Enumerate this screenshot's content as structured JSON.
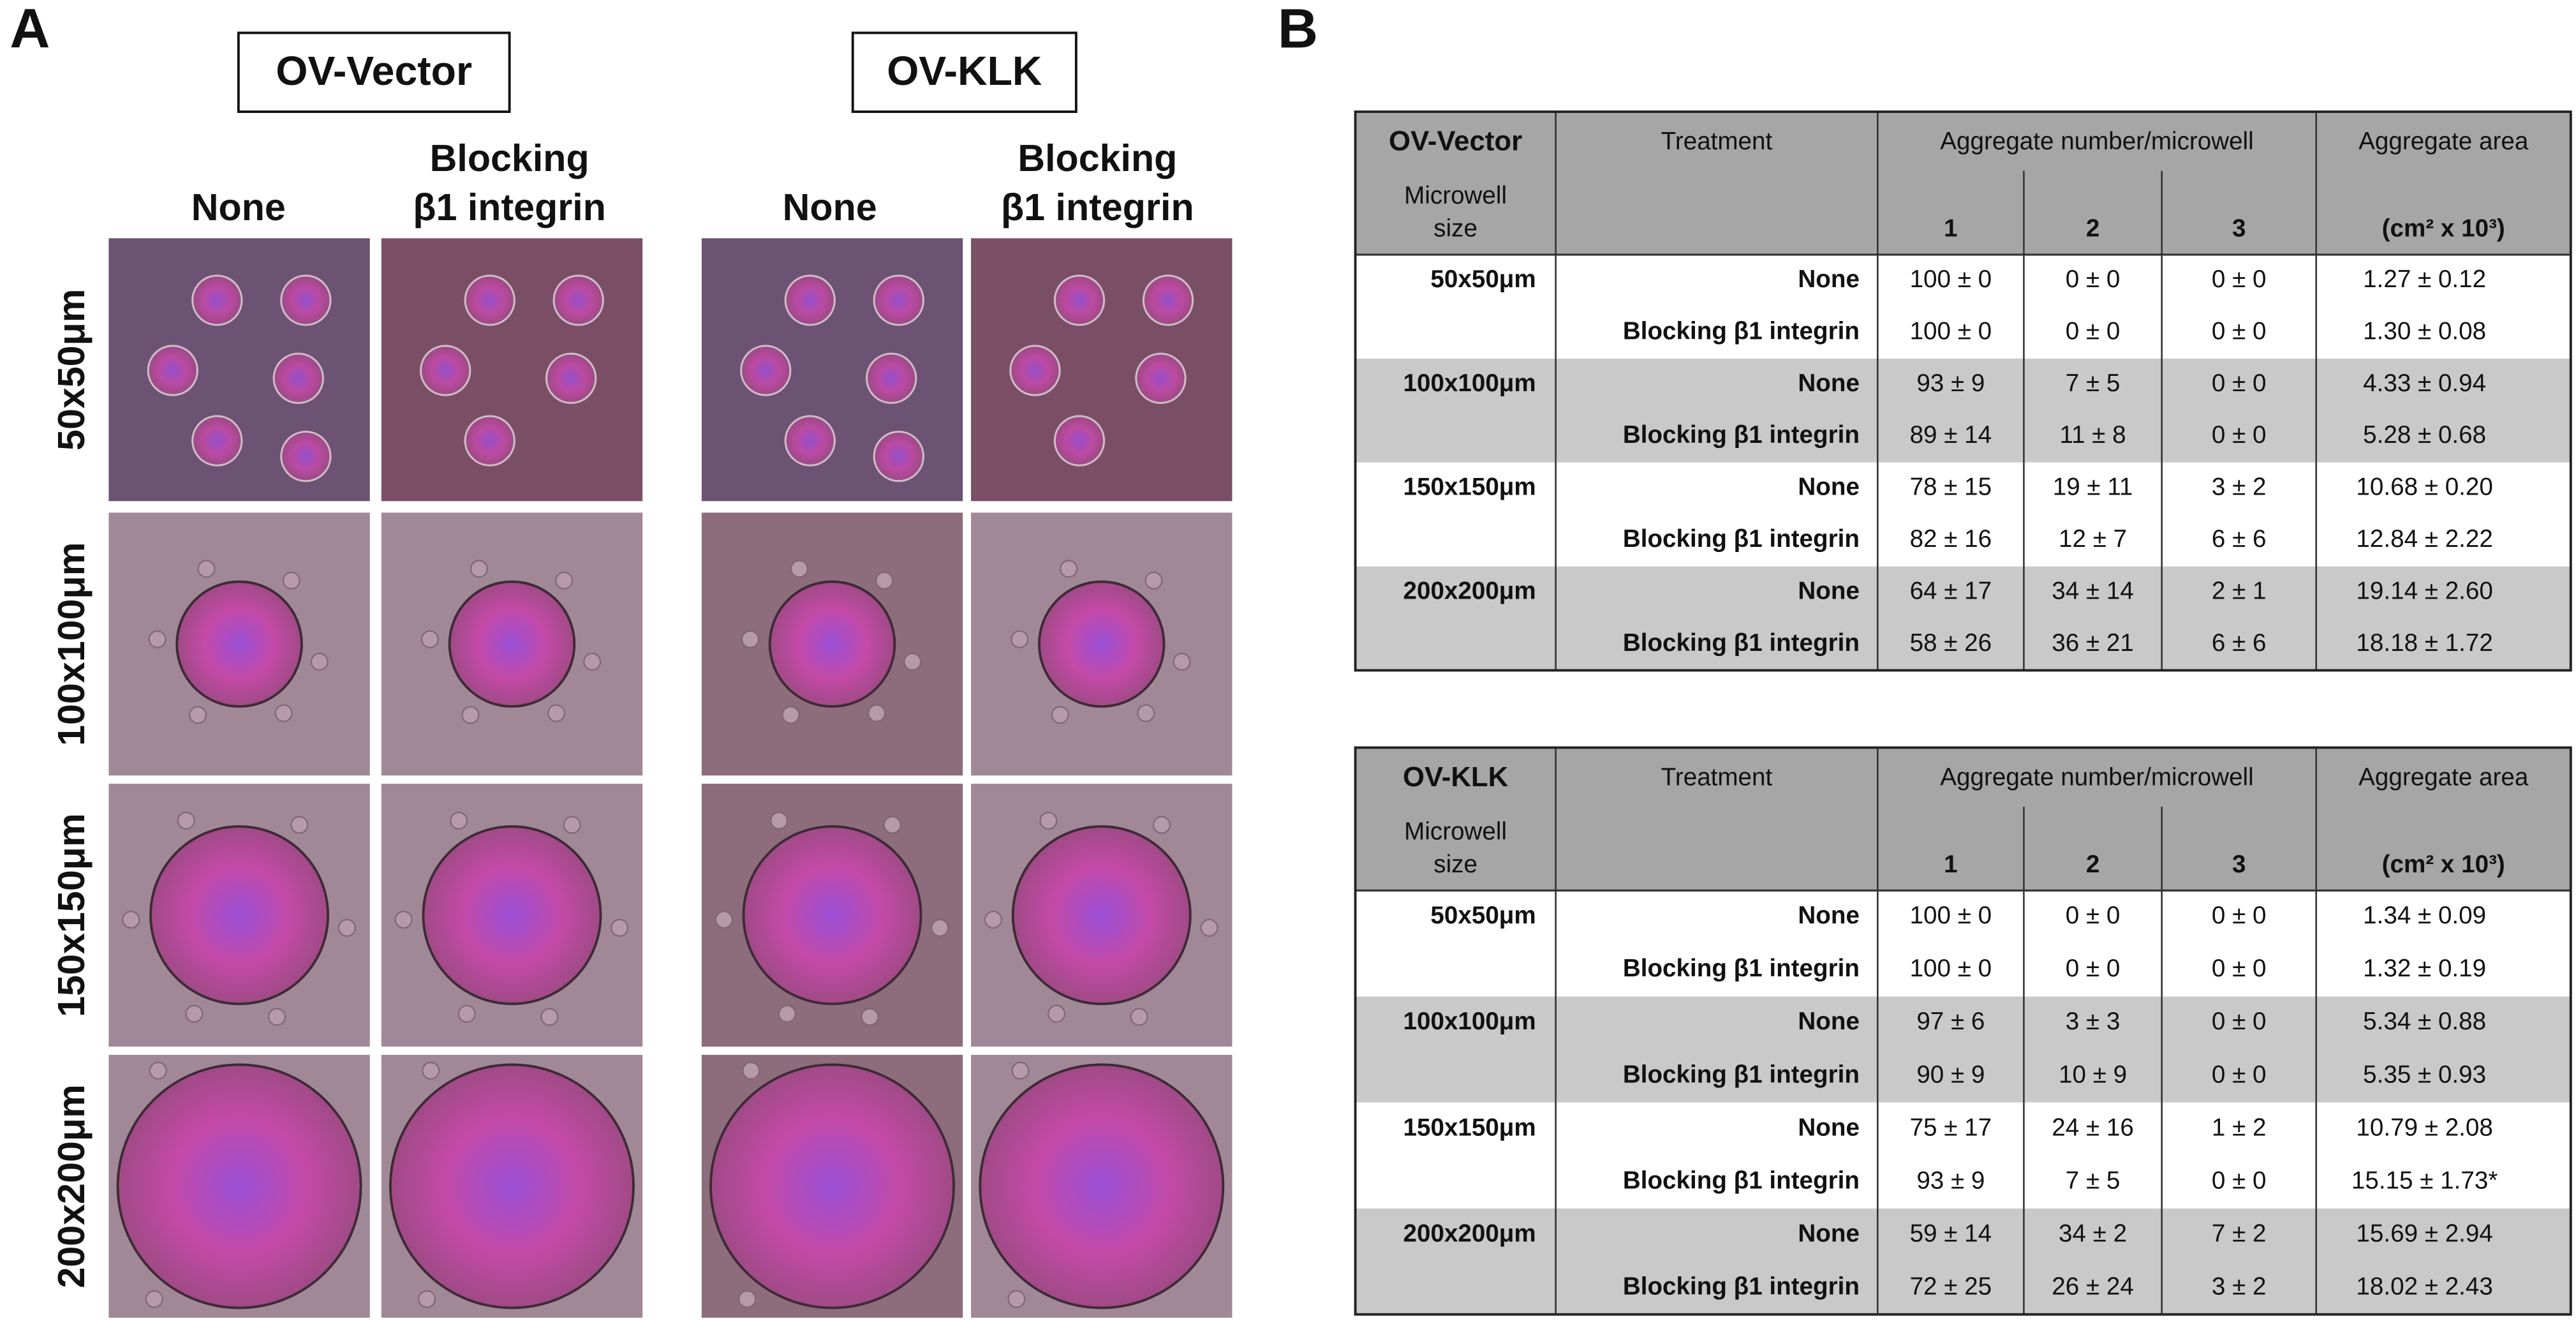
{
  "panel_a": {
    "label": "A",
    "groups": [
      {
        "title": "OV-Vector"
      },
      {
        "title": "OV-KLK"
      }
    ],
    "columns": [
      [
        "None"
      ],
      [
        "Blocking",
        "β1 integrin"
      ]
    ],
    "rows": [
      "50x50μm",
      "100x100μm",
      "150x150μm",
      "200x200μm"
    ]
  },
  "panel_b": {
    "label": "B",
    "tables": [
      {
        "cell_line": "OV-Vector",
        "header": {
          "size": [
            "Microwell",
            "size"
          ],
          "treatment": "Treatment",
          "number": "Aggregate number/microwell",
          "number_cols": [
            "1",
            "2",
            "3"
          ],
          "area": "Aggregate area",
          "area_unit": "(cm² x 10³)"
        },
        "groups": [
          {
            "size": "50x50μm",
            "rows": [
              {
                "treatment": "None",
                "values": [
                  "100 ± 0",
                  "0 ± 0",
                  "0 ± 0"
                ],
                "area": "1.27 ± 0.12"
              },
              {
                "treatment": "Blocking β1 integrin",
                "values": [
                  "100 ± 0",
                  "0 ± 0",
                  "0 ± 0"
                ],
                "area": "1.30 ± 0.08"
              }
            ]
          },
          {
            "size": "100x100μm",
            "rows": [
              {
                "treatment": "None",
                "values": [
                  "93 ± 9",
                  "7 ± 5",
                  "0 ± 0"
                ],
                "area": "4.33 ± 0.94"
              },
              {
                "treatment": "Blocking β1 integrin",
                "values": [
                  "89 ± 14",
                  "11 ± 8",
                  "0 ± 0"
                ],
                "area": "5.28 ± 0.68"
              }
            ]
          },
          {
            "size": "150x150μm",
            "rows": [
              {
                "treatment": "None",
                "values": [
                  "78 ± 15",
                  "19 ± 11",
                  "3 ± 2"
                ],
                "area": "10.68 ± 0.20"
              },
              {
                "treatment": "Blocking β1 integrin",
                "values": [
                  "82 ± 16",
                  "12 ± 7",
                  "6 ± 6"
                ],
                "area": "12.84 ± 2.22"
              }
            ]
          },
          {
            "size": "200x200μm",
            "rows": [
              {
                "treatment": "None",
                "values": [
                  "64 ± 17",
                  "34 ± 14",
                  "2 ± 1"
                ],
                "area": "19.14 ± 2.60"
              },
              {
                "treatment": "Blocking β1 integrin",
                "values": [
                  "58 ± 26",
                  "36 ± 21",
                  "6 ± 6"
                ],
                "area": "18.18 ± 1.72"
              }
            ]
          }
        ]
      },
      {
        "cell_line": "OV-KLK",
        "header": {
          "size": [
            "Microwell",
            "size"
          ],
          "treatment": "Treatment",
          "number": "Aggregate number/microwell",
          "number_cols": [
            "1",
            "2",
            "3"
          ],
          "area": "Aggregate area",
          "area_unit": "(cm² x 10³)"
        },
        "groups": [
          {
            "size": "50x50μm",
            "rows": [
              {
                "treatment": "None",
                "values": [
                  "100 ± 0",
                  "0 ± 0",
                  "0 ± 0"
                ],
                "area": "1.34 ± 0.09"
              },
              {
                "treatment": "Blocking β1 integrin",
                "values": [
                  "100 ± 0",
                  "0 ± 0",
                  "0 ± 0"
                ],
                "area": "1.32 ± 0.19"
              }
            ]
          },
          {
            "size": "100x100μm",
            "rows": [
              {
                "treatment": "None",
                "values": [
                  "97 ± 6",
                  "3 ± 3",
                  "0 ± 0"
                ],
                "area": "5.34 ± 0.88"
              },
              {
                "treatment": "Blocking β1 integrin",
                "values": [
                  "90 ± 9",
                  "10 ± 9",
                  "0 ± 0"
                ],
                "area": "5.35 ± 0.93"
              }
            ]
          },
          {
            "size": "150x150μm",
            "rows": [
              {
                "treatment": "None",
                "values": [
                  "75 ± 17",
                  "24 ± 16",
                  "1 ± 2"
                ],
                "area": "10.79 ± 2.08"
              },
              {
                "treatment": "Blocking β1 integrin",
                "values": [
                  "93 ± 9",
                  "7 ± 5",
                  "0 ± 0"
                ],
                "area": "15.15 ± 1.73*"
              }
            ]
          },
          {
            "size": "200x200μm",
            "rows": [
              {
                "treatment": "None",
                "values": [
                  "59 ± 14",
                  "34 ± 2",
                  "7 ± 2"
                ],
                "area": "15.69 ± 2.94"
              },
              {
                "treatment": "Blocking β1 integrin",
                "values": [
                  "72 ± 25",
                  "26 ± 24",
                  "3 ± 2"
                ],
                "area": "18.02 ± 2.43"
              }
            ]
          }
        ]
      }
    ]
  }
}
